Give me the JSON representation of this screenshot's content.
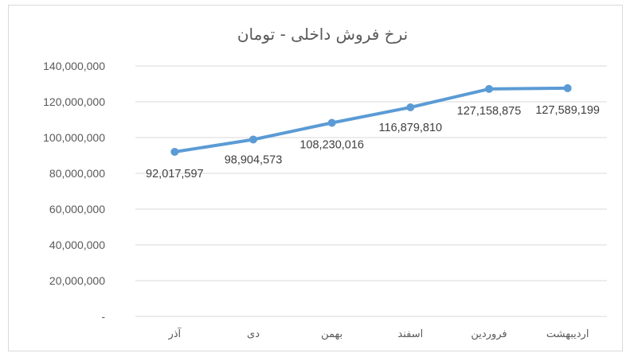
{
  "chart_data": {
    "type": "line",
    "title": "نرخ فروش داخلی - تومان",
    "categories": [
      "آذر",
      "دی",
      "بهمن",
      "اسفند",
      "فروردین",
      "اردیبهشت"
    ],
    "series": [
      {
        "values": [
          92017597,
          98904573,
          108230016,
          116879810,
          127158875,
          127589199
        ],
        "color": "#5b9bd5"
      }
    ],
    "data_labels": [
      "92,017,597",
      "98,904,573",
      "108,230,016",
      "116,879,810",
      "127,158,875",
      "127,589,199"
    ],
    "y_tick_labels": [
      "-",
      "20,000,000",
      "40,000,000",
      "60,000,000",
      "80,000,000",
      "100,000,000",
      "120,000,000",
      "140,000,000"
    ],
    "y_ticks": [
      0,
      20000000,
      40000000,
      60000000,
      80000000,
      100000000,
      120000000,
      140000000
    ],
    "ylim": [
      0,
      140000000
    ],
    "grid": true,
    "legend": "none",
    "gridline_color": "#d9d9d9",
    "text_color": "#595959"
  }
}
